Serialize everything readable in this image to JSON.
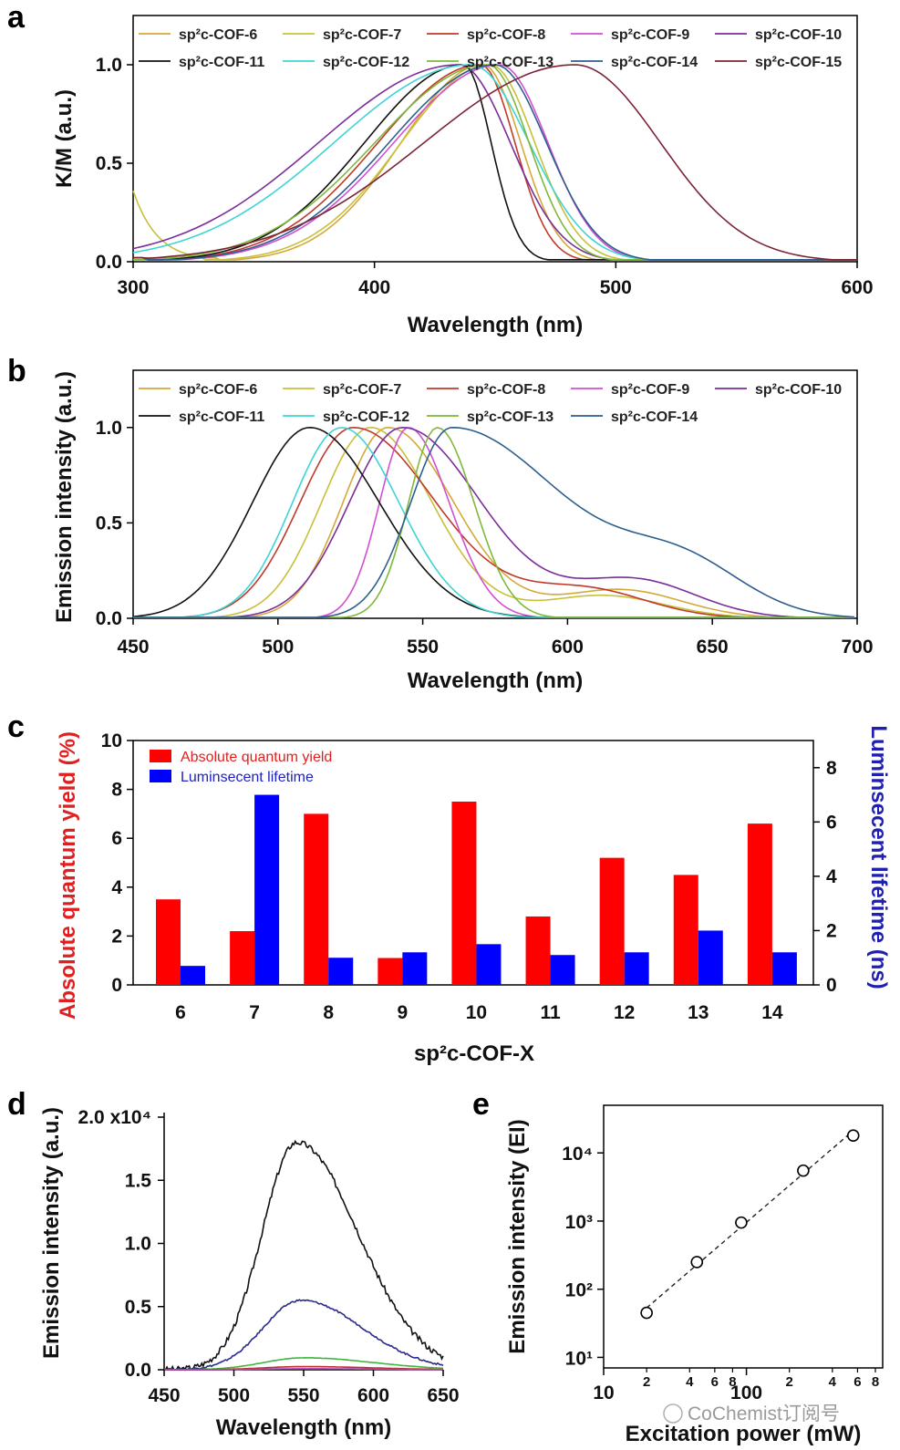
{
  "figure": {
    "watermark": "CoChemist订阅号"
  },
  "chart_data": [
    {
      "panel": "a",
      "type": "line",
      "xlabel": "Wavelength (nm)",
      "ylabel": "K/M (a.u.)",
      "xlim": [
        300,
        600
      ],
      "ylim": [
        0,
        1.25
      ],
      "xticks": [
        "300",
        "400",
        "500",
        "600"
      ],
      "yticks": [
        "0.0",
        "0.5",
        "1.0"
      ],
      "legend_position": "top",
      "series": [
        {
          "name": "sp²c-COF-6",
          "color": "#d4a93a",
          "peak": 445,
          "start": 335,
          "left_width": 48,
          "right_width": 22
        },
        {
          "name": "sp²c-COF-7",
          "color": "#c8c03a",
          "peak": 448,
          "start": 300,
          "left_width": 52,
          "right_width": 26
        },
        {
          "name": "sp²c-COF-8",
          "color": "#c0392b",
          "peak": 444,
          "start": 305,
          "left_width": 60,
          "right_width": 20
        },
        {
          "name": "sp²c-COF-9",
          "color": "#d24fd2",
          "peak": 452,
          "start": 300,
          "left_width": 62,
          "right_width": 28
        },
        {
          "name": "sp²c-COF-10",
          "color": "#7b2d9a",
          "peak": 435,
          "start": 300,
          "left_width": 82,
          "right_width": 30
        },
        {
          "name": "sp²c-COF-11",
          "color": "#111111",
          "peak": 437,
          "start": 305,
          "left_width": 58,
          "right_width": 16
        },
        {
          "name": "sp²c-COF-12",
          "color": "#3fd4d4",
          "peak": 440,
          "start": 300,
          "left_width": 80,
          "right_width": 34
        },
        {
          "name": "sp²c-COF-13",
          "color": "#7fb83a",
          "peak": 447,
          "start": 300,
          "left_width": 66,
          "right_width": 24
        },
        {
          "name": "sp²c-COF-14",
          "color": "#2e5e8e",
          "peak": 450,
          "start": 305,
          "left_width": 62,
          "right_width": 30
        },
        {
          "name": "sp²c-COF-15",
          "color": "#7a2436",
          "peak": 483,
          "start": 305,
          "left_width": 88,
          "right_width": 50
        }
      ]
    },
    {
      "panel": "b",
      "type": "line",
      "xlabel": "Wavelength (nm)",
      "ylabel": "Emission intensity (a.u.)",
      "xlim": [
        450,
        700
      ],
      "ylim": [
        0,
        1.3
      ],
      "xticks": [
        "450",
        "500",
        "550",
        "600",
        "650",
        "700"
      ],
      "yticks": [
        "0.0",
        "0.5",
        "1.0"
      ],
      "legend_position": "top",
      "series": [
        {
          "name": "sp²c-COF-6",
          "color": "#d4a93a",
          "peak": 538,
          "left_width": 22,
          "right_width": 32,
          "shoulder": 0.15
        },
        {
          "name": "sp²c-COF-7",
          "color": "#c8c03a",
          "peak": 532,
          "left_width": 24,
          "right_width": 30,
          "shoulder": 0.12
        },
        {
          "name": "sp²c-COF-8",
          "color": "#c0392b",
          "peak": 526,
          "left_width": 26,
          "right_width": 40,
          "shoulder": 0.15
        },
        {
          "name": "sp²c-COF-9",
          "color": "#d24fd2",
          "peak": 545,
          "left_width": 14,
          "right_width": 20,
          "shoulder": 0.0
        },
        {
          "name": "sp²c-COF-10",
          "color": "#7b2d9a",
          "peak": 543,
          "left_width": 26,
          "right_width": 38,
          "shoulder": 0.2
        },
        {
          "name": "sp²c-COF-11",
          "color": "#111111",
          "peak": 511,
          "left_width": 28,
          "right_width": 34,
          "shoulder": 0.0
        },
        {
          "name": "sp²c-COF-12",
          "color": "#3fd4d4",
          "peak": 522,
          "left_width": 24,
          "right_width": 28,
          "shoulder": 0.0
        },
        {
          "name": "sp²c-COF-13",
          "color": "#7fb83a",
          "peak": 555,
          "left_width": 14,
          "right_width": 18,
          "shoulder": 0.0
        },
        {
          "name": "sp²c-COF-14",
          "color": "#2e5e8e",
          "peak": 560,
          "left_width": 20,
          "right_width": 55,
          "shoulder": 0.25
        }
      ]
    },
    {
      "panel": "c",
      "type": "bar",
      "xlabel": "sp²c-COF-X",
      "ylabel_left": "Absolute quantum yield (%)",
      "ylabel_right": "Luminsecent lifetime (ns)",
      "categories": [
        "6",
        "7",
        "8",
        "9",
        "10",
        "11",
        "12",
        "13",
        "14"
      ],
      "ylim_left": [
        0,
        10
      ],
      "ylim_right": [
        0,
        9
      ],
      "yticks_left": [
        "0",
        "2",
        "4",
        "6",
        "8",
        "10"
      ],
      "yticks_right": [
        "0",
        "2",
        "4",
        "6",
        "8"
      ],
      "legend_position": "top-left",
      "series": [
        {
          "name": "Absolute quantum yield",
          "color": "#ff0000",
          "axis": "left",
          "values": [
            3.5,
            2.2,
            7.0,
            1.1,
            7.5,
            2.8,
            5.2,
            4.5,
            6.6
          ]
        },
        {
          "name": "Luminsecent lifetime",
          "color": "#0000ff",
          "axis": "right",
          "values": [
            0.7,
            7.0,
            1.0,
            1.2,
            1.5,
            1.1,
            1.2,
            2.0,
            1.2
          ]
        }
      ],
      "legend_text_colors": [
        "#e02020",
        "#2020c0"
      ]
    },
    {
      "panel": "d",
      "type": "line",
      "xlabel": "Wavelength (nm)",
      "ylabel": "Emission intensity (a.u.)",
      "xlim": [
        450,
        650
      ],
      "ylim": [
        0,
        20000
      ],
      "xticks": [
        "450",
        "500",
        "550",
        "600",
        "650"
      ],
      "yticks": [
        "0.0",
        "0.5",
        "1.0",
        "1.5",
        "2.0 x10⁴"
      ],
      "series": [
        {
          "color": "#111111",
          "peak": 545,
          "amplitude": 18000,
          "left_width": 35,
          "right_width": 62
        },
        {
          "color": "#2a2a8a",
          "peak": 548,
          "amplitude": 5500,
          "left_width": 38,
          "right_width": 62
        },
        {
          "color": "#3cb83c",
          "peak": 550,
          "amplitude": 950,
          "left_width": 40,
          "right_width": 70
        },
        {
          "color": "#c03030",
          "peak": 550,
          "amplitude": 250,
          "left_width": 40,
          "right_width": 70
        },
        {
          "color": "#b040b0",
          "peak": 550,
          "amplitude": 80,
          "left_width": 40,
          "right_width": 70
        }
      ]
    },
    {
      "panel": "e",
      "type": "scatter",
      "xlabel": "Excitation power (mW)",
      "ylabel": "Emission intensity (EI)",
      "xscale": "log",
      "yscale": "log",
      "xlim": [
        10,
        900
      ],
      "ylim": [
        7,
        50000
      ],
      "x_major_ticks": [
        "10",
        "100"
      ],
      "x_minor_ticks": [
        "2",
        "4",
        "6",
        "8",
        "2",
        "4",
        "6",
        "8"
      ],
      "y_ticks": [
        "10¹",
        "10²",
        "10³",
        "10⁴"
      ],
      "points": [
        {
          "x": 20,
          "y": 45
        },
        {
          "x": 45,
          "y": 250
        },
        {
          "x": 92,
          "y": 950
        },
        {
          "x": 250,
          "y": 5500
        },
        {
          "x": 560,
          "y": 18000
        }
      ],
      "fit_line": true
    }
  ]
}
